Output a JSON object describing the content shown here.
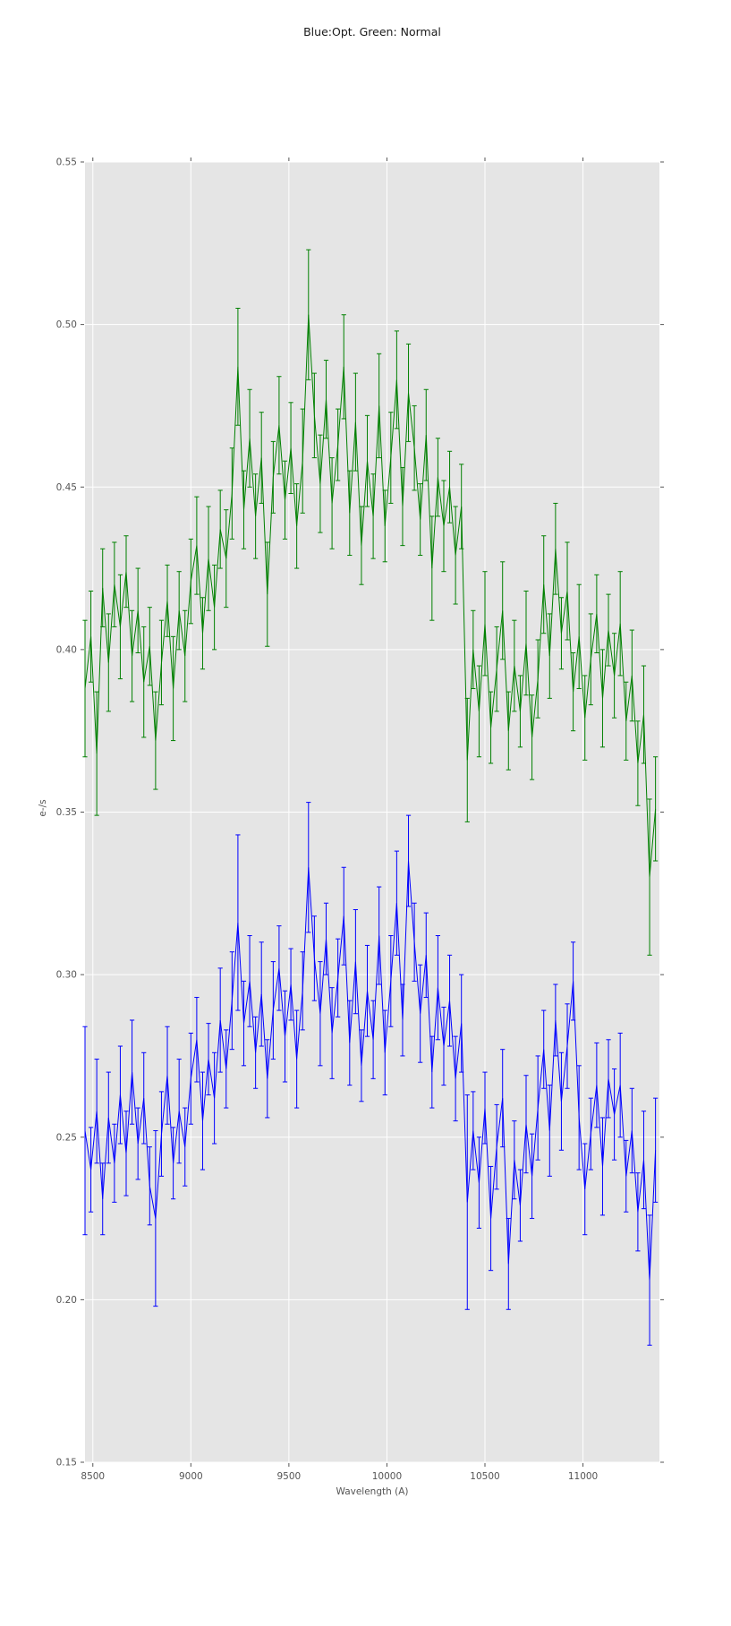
{
  "title": "Blue:Opt. Green: Normal",
  "colors": {
    "figure_bg": "#ffffff",
    "plot_bg": "#e5e5e5",
    "grid": "#ffffff",
    "tick": "#555555",
    "tick_label": "#555555",
    "title_color": "#1a1a1a",
    "green_series": "#008000",
    "blue_series": "#0000ff"
  },
  "chart_data": {
    "type": "line",
    "title": "Blue:Opt. Green: Normal",
    "xlabel": "Wavelength (A)",
    "ylabel": "e-/s",
    "xlim": [
      8460,
      11390
    ],
    "ylim": [
      0.15,
      0.55
    ],
    "xticks": [
      8500,
      9000,
      9500,
      10000,
      10500,
      11000
    ],
    "yticks": [
      0.15,
      0.2,
      0.25,
      0.3,
      0.35,
      0.4,
      0.45,
      0.5,
      0.55
    ],
    "grid": true,
    "legend_position": "none",
    "error_bars": true,
    "x": [
      8460,
      8490,
      8520,
      8550,
      8580,
      8610,
      8640,
      8670,
      8700,
      8730,
      8760,
      8790,
      8820,
      8850,
      8880,
      8910,
      8940,
      8970,
      9000,
      9030,
      9060,
      9090,
      9120,
      9150,
      9180,
      9210,
      9240,
      9270,
      9300,
      9330,
      9360,
      9390,
      9420,
      9450,
      9480,
      9510,
      9540,
      9570,
      9600,
      9630,
      9660,
      9690,
      9720,
      9750,
      9780,
      9810,
      9840,
      9870,
      9900,
      9930,
      9960,
      9990,
      10020,
      10050,
      10080,
      10110,
      10140,
      10170,
      10200,
      10230,
      10260,
      10290,
      10320,
      10350,
      10380,
      10410,
      10440,
      10470,
      10500,
      10530,
      10560,
      10590,
      10620,
      10650,
      10680,
      10710,
      10740,
      10770,
      10800,
      10830,
      10860,
      10890,
      10920,
      10950,
      10980,
      11010,
      11040,
      11070,
      11100,
      11130,
      11160,
      11190,
      11220,
      11250,
      11280,
      11310,
      11340,
      11370
    ],
    "series": [
      {
        "name": "Normal",
        "color": "#008000",
        "values": [
          0.388,
          0.404,
          0.368,
          0.419,
          0.396,
          0.42,
          0.407,
          0.424,
          0.398,
          0.412,
          0.39,
          0.401,
          0.372,
          0.396,
          0.415,
          0.388,
          0.412,
          0.398,
          0.421,
          0.432,
          0.405,
          0.428,
          0.413,
          0.437,
          0.428,
          0.448,
          0.487,
          0.443,
          0.465,
          0.441,
          0.459,
          0.417,
          0.453,
          0.469,
          0.446,
          0.462,
          0.438,
          0.458,
          0.503,
          0.472,
          0.451,
          0.477,
          0.445,
          0.463,
          0.487,
          0.442,
          0.47,
          0.432,
          0.458,
          0.441,
          0.475,
          0.438,
          0.459,
          0.483,
          0.444,
          0.479,
          0.462,
          0.44,
          0.466,
          0.425,
          0.453,
          0.438,
          0.45,
          0.429,
          0.444,
          0.366,
          0.4,
          0.381,
          0.408,
          0.376,
          0.394,
          0.412,
          0.375,
          0.395,
          0.381,
          0.402,
          0.373,
          0.391,
          0.42,
          0.398,
          0.431,
          0.405,
          0.418,
          0.387,
          0.404,
          0.379,
          0.397,
          0.411,
          0.385,
          0.406,
          0.392,
          0.408,
          0.378,
          0.392,
          0.365,
          0.38,
          0.33,
          0.351
        ],
        "yerr": [
          0.021,
          0.014,
          0.019,
          0.012,
          0.015,
          0.013,
          0.016,
          0.011,
          0.014,
          0.013,
          0.017,
          0.012,
          0.015,
          0.013,
          0.011,
          0.016,
          0.012,
          0.014,
          0.013,
          0.015,
          0.011,
          0.016,
          0.013,
          0.012,
          0.015,
          0.014,
          0.018,
          0.012,
          0.015,
          0.013,
          0.014,
          0.016,
          0.011,
          0.015,
          0.012,
          0.014,
          0.013,
          0.016,
          0.02,
          0.013,
          0.015,
          0.012,
          0.014,
          0.011,
          0.016,
          0.013,
          0.015,
          0.012,
          0.014,
          0.013,
          0.016,
          0.011,
          0.014,
          0.015,
          0.012,
          0.015,
          0.013,
          0.011,
          0.014,
          0.016,
          0.012,
          0.014,
          0.011,
          0.015,
          0.013,
          0.019,
          0.012,
          0.014,
          0.016,
          0.011,
          0.013,
          0.015,
          0.012,
          0.014,
          0.011,
          0.016,
          0.013,
          0.012,
          0.015,
          0.013,
          0.014,
          0.011,
          0.015,
          0.012,
          0.016,
          0.013,
          0.014,
          0.012,
          0.015,
          0.011,
          0.013,
          0.016,
          0.012,
          0.014,
          0.013,
          0.015,
          0.024,
          0.016
        ]
      },
      {
        "name": "Opt",
        "color": "#0000ff",
        "values": [
          0.252,
          0.24,
          0.258,
          0.231,
          0.256,
          0.242,
          0.263,
          0.245,
          0.27,
          0.248,
          0.262,
          0.235,
          0.225,
          0.251,
          0.269,
          0.242,
          0.258,
          0.247,
          0.268,
          0.28,
          0.255,
          0.274,
          0.262,
          0.286,
          0.271,
          0.292,
          0.316,
          0.285,
          0.298,
          0.276,
          0.294,
          0.268,
          0.289,
          0.302,
          0.281,
          0.297,
          0.274,
          0.295,
          0.333,
          0.305,
          0.288,
          0.311,
          0.282,
          0.299,
          0.318,
          0.279,
          0.304,
          0.272,
          0.295,
          0.28,
          0.312,
          0.276,
          0.298,
          0.322,
          0.286,
          0.335,
          0.31,
          0.288,
          0.306,
          0.27,
          0.296,
          0.278,
          0.292,
          0.268,
          0.285,
          0.23,
          0.252,
          0.236,
          0.259,
          0.225,
          0.247,
          0.262,
          0.211,
          0.243,
          0.229,
          0.254,
          0.238,
          0.259,
          0.277,
          0.252,
          0.286,
          0.261,
          0.278,
          0.298,
          0.256,
          0.234,
          0.251,
          0.266,
          0.241,
          0.268,
          0.257,
          0.266,
          0.238,
          0.252,
          0.227,
          0.243,
          0.206,
          0.246
        ],
        "yerr": [
          0.032,
          0.013,
          0.016,
          0.011,
          0.014,
          0.012,
          0.015,
          0.013,
          0.016,
          0.011,
          0.014,
          0.012,
          0.027,
          0.013,
          0.015,
          0.011,
          0.016,
          0.012,
          0.014,
          0.013,
          0.015,
          0.011,
          0.014,
          0.016,
          0.012,
          0.015,
          0.027,
          0.013,
          0.014,
          0.011,
          0.016,
          0.012,
          0.015,
          0.013,
          0.014,
          0.011,
          0.015,
          0.012,
          0.02,
          0.013,
          0.016,
          0.011,
          0.014,
          0.012,
          0.015,
          0.013,
          0.016,
          0.011,
          0.014,
          0.012,
          0.015,
          0.013,
          0.014,
          0.016,
          0.011,
          0.014,
          0.012,
          0.015,
          0.013,
          0.011,
          0.016,
          0.012,
          0.014,
          0.013,
          0.015,
          0.033,
          0.012,
          0.014,
          0.011,
          0.016,
          0.013,
          0.015,
          0.014,
          0.012,
          0.011,
          0.015,
          0.013,
          0.016,
          0.012,
          0.014,
          0.011,
          0.015,
          0.013,
          0.012,
          0.016,
          0.014,
          0.011,
          0.013,
          0.015,
          0.012,
          0.014,
          0.016,
          0.011,
          0.013,
          0.012,
          0.015,
          0.02,
          0.016
        ]
      }
    ]
  }
}
